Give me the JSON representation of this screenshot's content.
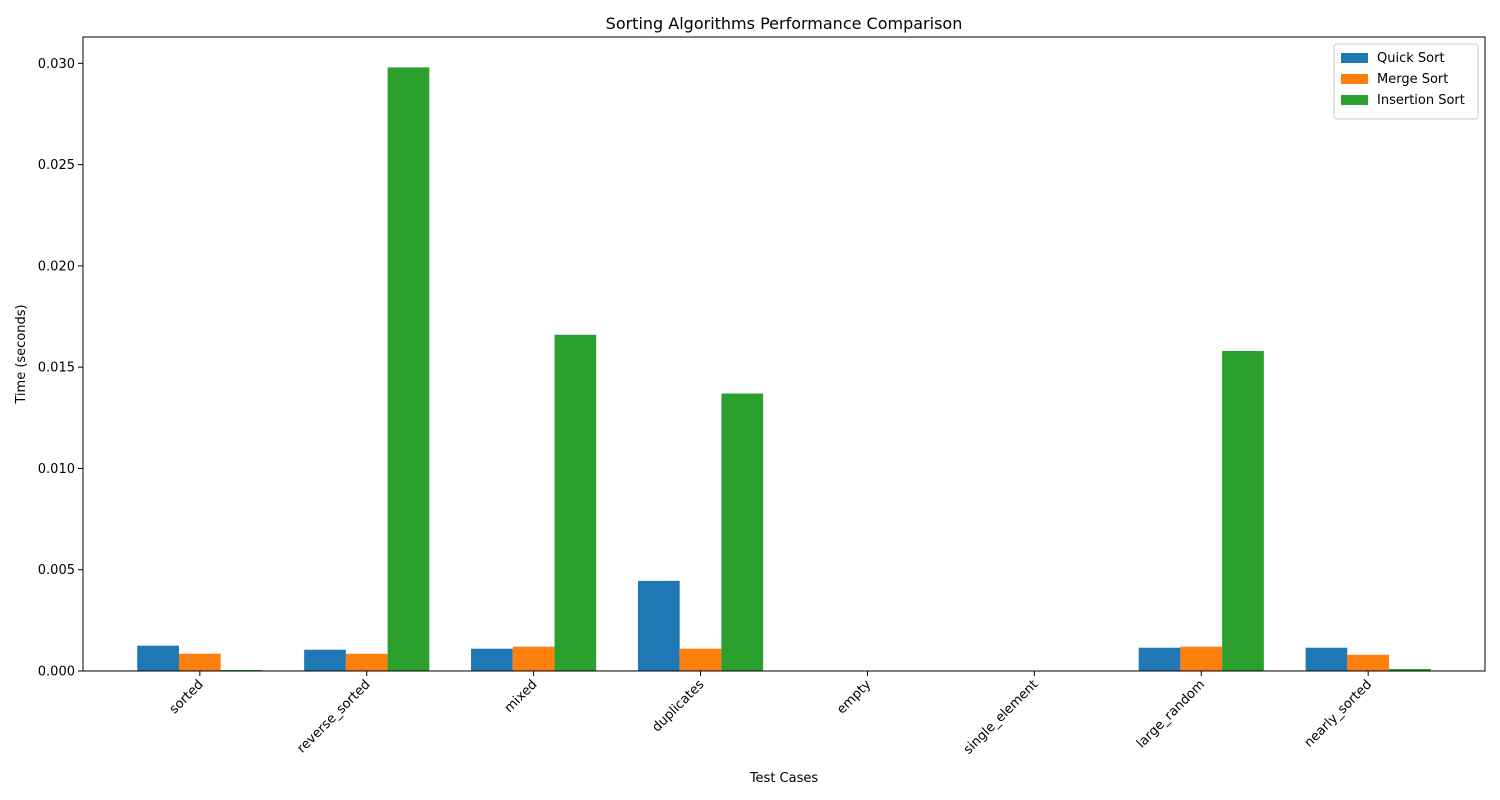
{
  "chart_data": {
    "type": "bar",
    "title": "Sorting Algorithms Performance Comparison",
    "xlabel": "Test Cases",
    "ylabel": "Time (seconds)",
    "categories": [
      "sorted",
      "reverse_sorted",
      "mixed",
      "duplicates",
      "empty",
      "single_element",
      "large_random",
      "nearly_sorted"
    ],
    "series": [
      {
        "name": "Quick Sort",
        "color": "#1f77b4",
        "values": [
          0.00125,
          0.00105,
          0.0011,
          0.00445,
          0.0,
          0.0,
          0.00115,
          0.00115
        ]
      },
      {
        "name": "Merge Sort",
        "color": "#ff7f0e",
        "values": [
          0.00085,
          0.00085,
          0.0012,
          0.0011,
          0.0,
          0.0,
          0.0012,
          0.0008
        ]
      },
      {
        "name": "Insertion Sort",
        "color": "#2ca02c",
        "values": [
          5e-05,
          0.0298,
          0.0166,
          0.0137,
          0.0,
          0.0,
          0.0158,
          0.0001
        ]
      }
    ],
    "ylim": [
      0,
      0.0313
    ],
    "yticks": [
      0.0,
      0.005,
      0.01,
      0.015,
      0.02,
      0.025,
      0.03
    ],
    "ytick_labels": [
      "0.000",
      "0.005",
      "0.010",
      "0.015",
      "0.020",
      "0.025",
      "0.030"
    ],
    "grid": false,
    "legend_position": "top-right"
  }
}
